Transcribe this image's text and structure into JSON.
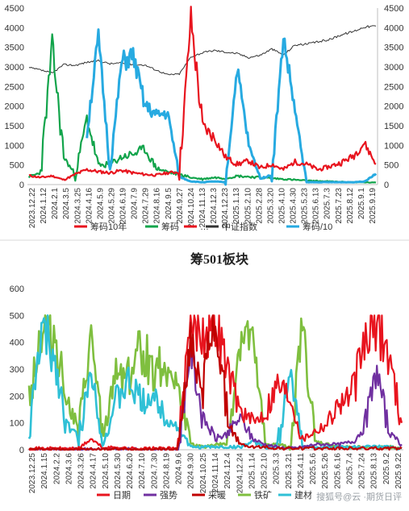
{
  "chart_data": [
    {
      "type": "line",
      "title": "",
      "ylim_left": [
        0,
        4500
      ],
      "ylim_right": [
        0,
        4500
      ],
      "yticks_left": [
        "0",
        "500",
        "1000",
        "1500",
        "2000",
        "2500",
        "3000",
        "3500",
        "4000",
        "4500"
      ],
      "yticks_right": [
        "0",
        "500",
        "1000",
        "1500",
        "2000",
        "2500",
        "3000",
        "3500",
        "4000",
        "4500"
      ],
      "xticks": [
        "2023.12.22",
        "2024.1.12",
        "2024.2.1",
        "2024.3.5",
        "2024.3.25",
        "2024.4.16",
        "2024.5.9",
        "2024.5.29",
        "2024.6.19",
        "2024.7.9",
        "2024.7.29",
        "2024.8.16",
        "2024.9.5",
        "2024.9.27",
        "2024.10.24",
        "2024.11.13",
        "2024.12.3",
        "2024.12.23",
        "2025.1.13",
        "2025.2.10",
        "2025.2.28",
        "2025.3.20",
        "2025.4.10",
        "2025.4.30",
        "2025.5.23",
        "2025.6.13",
        "2025.7.3",
        "2025.7.23",
        "2025.8.12",
        "2025.9.1",
        "2025.9.19"
      ],
      "legend": [
        "筹码10年",
        "筹码",
        "…",
        "中证指数",
        "筹码/10"
      ],
      "series": [
        {
          "name": "筹码10年",
          "color": "#e8141e",
          "axis": "left",
          "values": [
            230,
            180,
            220,
            120,
            260,
            380,
            330,
            300,
            360,
            300,
            260,
            240,
            300,
            320,
            4250,
            1500,
            1200,
            700,
            520,
            600,
            420,
            520,
            380,
            580,
            520,
            380,
            460,
            560,
            720,
            1060,
            520
          ]
        },
        {
          "name": "筹码",
          "color": "#12a44b",
          "axis": "left",
          "values": [
            200,
            300,
            3550,
            700,
            240,
            1700,
            480,
            520,
            700,
            780,
            900,
            420,
            320,
            260,
            180,
            140,
            180,
            160,
            220,
            200,
            180,
            160,
            140,
            120,
            100,
            90,
            80,
            70,
            60,
            55,
            50
          ]
        },
        {
          "name": "中证指数",
          "color": "#333333",
          "axis": "right",
          "values": [
            2980,
            2920,
            2840,
            3060,
            3040,
            3120,
            3160,
            3080,
            3100,
            3060,
            3050,
            2920,
            2800,
            2820,
            3260,
            3360,
            3420,
            3380,
            3340,
            3240,
            3300,
            3460,
            3300,
            3560,
            3580,
            3640,
            3700,
            3820,
            3900,
            4020,
            4040
          ]
        },
        {
          "name": "筹码/10",
          "color": "#27aae1",
          "axis": "right",
          "values": [
            null,
            null,
            null,
            null,
            null,
            1300,
            3780,
            380,
            3100,
            3280,
            2020,
            1760,
            1820,
            200,
            80,
            60,
            80,
            60,
            2980,
            1000,
            160,
            240,
            3760,
            1880,
            60,
            60,
            60,
            60,
            60,
            80,
            280
          ]
        }
      ]
    },
    {
      "type": "line",
      "title": "筹501板块",
      "ylim": [
        0,
        600
      ],
      "yticks": [
        "0",
        "100",
        "200",
        "300",
        "400",
        "500",
        "600"
      ],
      "xticks": [
        "2023.12.25",
        "2024.1.15",
        "2024.2.2",
        "2024.3.6",
        "2024.3.26",
        "2024.4.17",
        "2024.5.10",
        "2024.5.30",
        "2024.6.20",
        "2024.7.10",
        "2024.7.30",
        "2024.8.19",
        "2024.9.6",
        "2024.9.30",
        "2024.10.25",
        "2024.11.14",
        "2024.12.4",
        "2024.12.24",
        "2025.1.14",
        "2025.2.10",
        "2025.3.3",
        "2025.3.21",
        "2025.4.11",
        "2025.5.6",
        "2025.5.26",
        "2025.6.16",
        "2025.7.4",
        "2025.7.24",
        "2025.8.13",
        "2025.9.2",
        "2025.9.22"
      ],
      "legend": [
        "日期",
        "强势",
        "采暖",
        "铁矿",
        "建材"
      ],
      "series": [
        {
          "name": "日期",
          "color": "#e8141e",
          "values": [
            5,
            5,
            5,
            5,
            5,
            40,
            5,
            10,
            5,
            5,
            5,
            5,
            5,
            480,
            460,
            490,
            300,
            150,
            100,
            140,
            250,
            200,
            40,
            70,
            100,
            180,
            200,
            400,
            480,
            350,
            100
          ]
        },
        {
          "name": "强势",
          "color": "#7030a0",
          "values": [
            2,
            2,
            2,
            2,
            2,
            2,
            2,
            2,
            2,
            2,
            2,
            2,
            2,
            380,
            120,
            40,
            60,
            120,
            40,
            20,
            10,
            5,
            10,
            20,
            20,
            20,
            30,
            80,
            300,
            60,
            20
          ]
        },
        {
          "name": "采暖",
          "color": "#c00000",
          "values": [
            2,
            2,
            2,
            2,
            2,
            2,
            2,
            2,
            2,
            2,
            2,
            2,
            2,
            400,
            250,
            480,
            100,
            20,
            10,
            10,
            5,
            5,
            5,
            5,
            5,
            5,
            5,
            5,
            5,
            5,
            5
          ]
        },
        {
          "name": "铁矿",
          "color": "#7fbf3f",
          "values": [
            200,
            450,
            440,
            200,
            60,
            420,
            30,
            300,
            280,
            380,
            300,
            320,
            230,
            20,
            10,
            20,
            20,
            420,
            400,
            20,
            20,
            10,
            470,
            30,
            20,
            10,
            10,
            10,
            10,
            10,
            5
          ]
        },
        {
          "name": "建材",
          "color": "#2fc0d6",
          "values": [
            50,
            440,
            350,
            100,
            40,
            300,
            20,
            180,
            250,
            180,
            200,
            120,
            80,
            10,
            10,
            10,
            10,
            10,
            30,
            10,
            10,
            300,
            10,
            10,
            10,
            10,
            10,
            10,
            10,
            10,
            5
          ]
        }
      ]
    }
  ],
  "watermark": "搜狐号@云 ·期货日评"
}
